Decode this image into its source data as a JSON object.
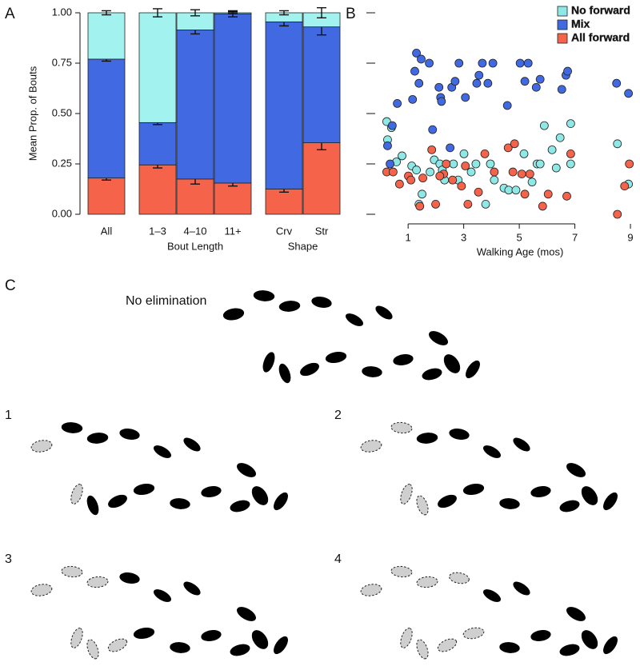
{
  "chart_data": [
    {
      "type": "bar",
      "stacked": true,
      "label": "A",
      "ylabel": "Mean Prop. of Bouts",
      "groups": [
        {
          "categories": [
            "All"
          ]
        },
        {
          "label": "Bout Length",
          "categories": [
            "1–3",
            "4–10",
            "11+"
          ]
        },
        {
          "label": "Shape",
          "categories": [
            "Crv",
            "Str"
          ]
        }
      ],
      "series": [
        {
          "color": "#f4634a",
          "values": [
            0.18,
            0.245,
            0.175,
            0.155,
            0.125,
            0.355
          ],
          "errors": [
            0.01,
            0.015,
            0.025,
            0.015,
            0.015,
            0.035
          ]
        },
        {
          "color": "#4169e1",
          "values": [
            0.59,
            0.21,
            0.74,
            0.84,
            0.83,
            0.575
          ],
          "errors": [
            0.01,
            0.01,
            0.02,
            0.015,
            0.02,
            0.04
          ]
        },
        {
          "color": "#a2f3f0",
          "values": [
            0.23,
            0.545,
            0.085,
            0.005,
            0.045,
            0.07
          ],
          "errors": [
            0.01,
            0.02,
            0.015,
            0.005,
            0.01,
            0.025
          ]
        }
      ],
      "ylim": [
        0,
        1
      ],
      "yticks": [
        {
          "value": 0,
          "label": "0.00"
        },
        {
          "value": 0.25,
          "label": "0.25"
        },
        {
          "value": 0.5,
          "label": "0.50"
        },
        {
          "value": 0.75,
          "label": "0.75"
        },
        {
          "value": 1,
          "label": "1.00"
        }
      ]
    },
    {
      "type": "scatter",
      "label": "B",
      "xlabel": "Walking Age (mos)",
      "xlim": [
        -0.3,
        9.2
      ],
      "xticks": [
        1,
        3,
        5,
        7,
        9
      ],
      "ylim": [
        0,
        1
      ],
      "yticks": [
        0,
        0.25,
        0.5,
        0.75,
        1
      ],
      "ytick_labels": false,
      "legend": "upper right",
      "series": [
        {
          "name": "No forward",
          "color": "#8ee8e6",
          "x": [
            0.23,
            0.4,
            0.26,
            0.78,
            0.58,
            1.13,
            1.3,
            1.5,
            1.94,
            1.79,
            2.14,
            2.23,
            2.31,
            2.63,
            2.8,
            3.01,
            3.27,
            3.44,
            3.79,
            3.96,
            4.1,
            4.45,
            4.62,
            4.88,
            5.17,
            5.46,
            5.64,
            5.75,
            5.9,
            6.18,
            6.47,
            6.33,
            6.85,
            6.85,
            8.53,
            8.93,
            1.39
          ],
          "y": [
            0.46,
            0.43,
            0.37,
            0.29,
            0.26,
            0.24,
            0.22,
            0.1,
            0.27,
            0.21,
            0.25,
            0.22,
            0.17,
            0.25,
            0.17,
            0.3,
            0.21,
            0.25,
            0.05,
            0.25,
            0.17,
            0.13,
            0.12,
            0.12,
            0.3,
            0.16,
            0.25,
            0.25,
            0.44,
            0.32,
            0.38,
            0.23,
            0.25,
            0.45,
            0.35,
            0.15,
            0.05
          ]
        },
        {
          "name": "Mix",
          "color": "#4169e1",
          "x": [
            0.61,
            0.43,
            1.16,
            1.24,
            1.3,
            1.39,
            1.47,
            1.76,
            2.11,
            2.17,
            2.2,
            2.57,
            2.69,
            2.83,
            3.06,
            3.47,
            3.55,
            3.67,
            3.87,
            4.05,
            4.57,
            5.03,
            5.2,
            5.32,
            5.61,
            5.75,
            6.53,
            6.68,
            6.74,
            8.5,
            8.93,
            1.88,
            2.51,
            0.26,
            0.35
          ],
          "y": [
            0.55,
            0.44,
            0.57,
            0.71,
            0.8,
            0.65,
            0.77,
            0.75,
            0.63,
            0.58,
            0.56,
            0.63,
            0.66,
            0.75,
            0.58,
            0.65,
            0.69,
            0.75,
            0.65,
            0.75,
            0.54,
            0.75,
            0.66,
            0.75,
            0.63,
            0.67,
            0.62,
            0.69,
            0.71,
            0.65,
            0.6,
            0.42,
            0.33,
            0.34,
            0.25
          ]
        },
        {
          "name": "All forward",
          "color": "#f4634a",
          "x": [
            0.23,
            0.46,
            0.69,
            1.01,
            1.1,
            1.42,
            1.53,
            1.85,
            1.99,
            2.28,
            2.37,
            2.6,
            2.92,
            3.06,
            3.15,
            3.53,
            3.76,
            4.1,
            4.6,
            4.77,
            4.83,
            5.09,
            5.2,
            5.38,
            5.84,
            6.04,
            6.71,
            6.85,
            8.53,
            8.96,
            8.79,
            2.14
          ],
          "y": [
            0.21,
            0.21,
            0.15,
            0.19,
            0.17,
            0.04,
            0.18,
            0.32,
            0.05,
            0.2,
            0.25,
            0.17,
            0.14,
            0.24,
            0.05,
            0.11,
            0.3,
            0.21,
            0.33,
            0.21,
            0.35,
            0.2,
            0.1,
            0.2,
            0.04,
            0.1,
            0.09,
            0.3,
            0.0,
            0.25,
            0.14,
            0.19
          ]
        }
      ]
    }
  ],
  "diagram": {
    "label": "C",
    "panels": [
      {
        "title": "No elimination"
      },
      {
        "title": "1"
      },
      {
        "title": "2"
      },
      {
        "title": "3"
      },
      {
        "title": "4"
      }
    ]
  }
}
